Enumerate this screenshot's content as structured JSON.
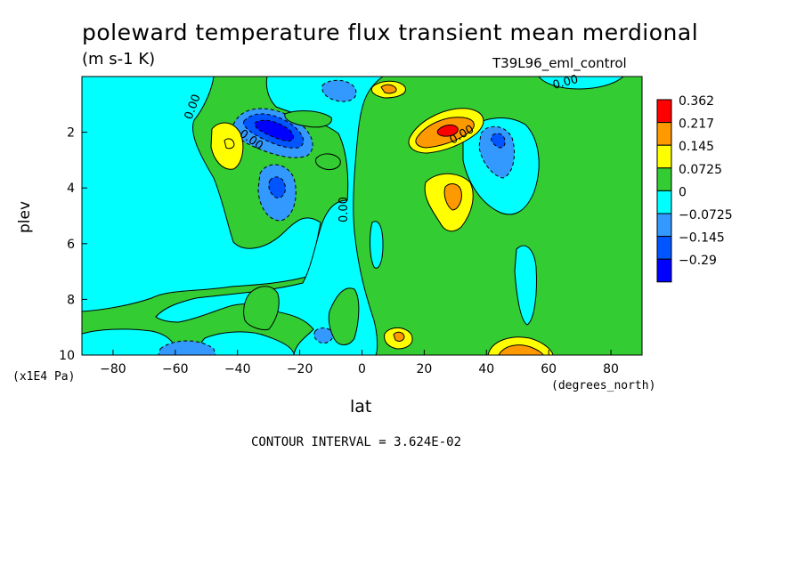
{
  "chart_data": {
    "type": "heatmap",
    "title": "poleward temperature flux transient mean merdional",
    "units": "(m s-1 K)",
    "dataset": "T39L96_eml_control",
    "xlabel": "lat",
    "x_units": "(degrees_north)",
    "ylabel": "plev",
    "y_units": "(x1E4 Pa)",
    "xlim": [
      -90,
      90
    ],
    "ylim": [
      10,
      0
    ],
    "x_ticks": [
      "-80",
      "-60",
      "-40",
      "-20",
      "0",
      "20",
      "40",
      "60",
      "80"
    ],
    "y_ticks": [
      "2",
      "4",
      "6",
      "8",
      "10"
    ],
    "contour_interval_text": "CONTOUR INTERVAL = 3.624E-02",
    "contour_labels": [
      "0.00",
      "0.00",
      "0.00",
      "0.00",
      "0.00"
    ],
    "colorbar": {
      "labels": [
        "0.362",
        "0.217",
        "0.145",
        "0.0725",
        "0",
        "−0.0725",
        "−0.145",
        "−0.29"
      ],
      "colors": [
        "#ff0000",
        "#ff9900",
        "#ffff00",
        "#33cc33",
        "#00ffff",
        "#3399ff",
        "#0055ff",
        "#0000ff"
      ],
      "levels": [
        0.362,
        0.217,
        0.145,
        0.0725,
        0,
        -0.0725,
        -0.145,
        -0.29
      ]
    },
    "features": [
      {
        "lat": -25,
        "plev": 2.0,
        "value": -0.29,
        "sign": "negative",
        "desc": "strong negative core"
      },
      {
        "lat": -47,
        "plev": 2.5,
        "value": 0.145,
        "sign": "positive"
      },
      {
        "lat": -27,
        "plev": 4.0,
        "value": -0.145,
        "sign": "negative"
      },
      {
        "lat": -12,
        "plev": 0.5,
        "value": -0.145,
        "sign": "negative"
      },
      {
        "lat": 8,
        "plev": 0.5,
        "value": 0.145,
        "sign": "positive"
      },
      {
        "lat": 28,
        "plev": 2.0,
        "value": 0.362,
        "sign": "positive",
        "desc": "strong positive core"
      },
      {
        "lat": 30,
        "plev": 4.2,
        "value": 0.217,
        "sign": "positive"
      },
      {
        "lat": 42,
        "plev": 2.5,
        "value": -0.145,
        "sign": "negative"
      },
      {
        "lat": 48,
        "plev": 9.8,
        "value": 0.217,
        "sign": "positive"
      },
      {
        "lat": -50,
        "plev": 9.9,
        "value": -0.145,
        "sign": "negative"
      },
      {
        "lat": 12,
        "plev": 9.2,
        "value": 0.145,
        "sign": "positive"
      },
      {
        "lat": -12,
        "plev": 9.2,
        "value": -0.0725,
        "sign": "negative"
      }
    ]
  }
}
